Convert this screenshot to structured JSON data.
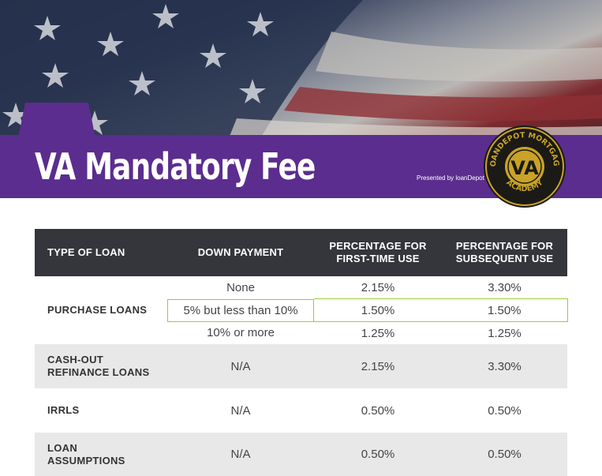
{
  "header": {
    "title": "VA Mandatory Fee",
    "presented_by": "Presented by loanDepot",
    "badge_top_text": "LOANDEPOT MORTGAGE",
    "badge_center": "VA",
    "badge_bottom_text": "ACADEMY"
  },
  "colors": {
    "purple": "#5b2d8e",
    "header_bg": "#34363b",
    "highlight": "#9ccc3c",
    "gold": "#c9a227"
  },
  "table": {
    "columns": [
      "TYPE OF LOAN",
      "DOWN PAYMENT",
      "PERCENTAGE FOR FIRST-TIME USE",
      "PERCENTAGE FOR SUBSEQUENT USE"
    ],
    "purchase": {
      "label": "PURCHASE LOANS",
      "rows": [
        {
          "down": "None",
          "first": "2.15%",
          "subsequent": "3.30%"
        },
        {
          "down": "5% but less than 10%",
          "first": "1.50%",
          "subsequent": "1.50%"
        },
        {
          "down": "10% or more",
          "first": "1.25%",
          "subsequent": "1.25%"
        }
      ]
    },
    "rows": [
      {
        "label": "CASH-OUT REFINANCE LOANS",
        "down": "N/A",
        "first": "2.15%",
        "subsequent": "3.30%"
      },
      {
        "label": "IRRLS",
        "down": "N/A",
        "first": "0.50%",
        "subsequent": "0.50%"
      },
      {
        "label": "LOAN ASSUMPTIONS",
        "down": "N/A",
        "first": "0.50%",
        "subsequent": "0.50%"
      }
    ]
  }
}
